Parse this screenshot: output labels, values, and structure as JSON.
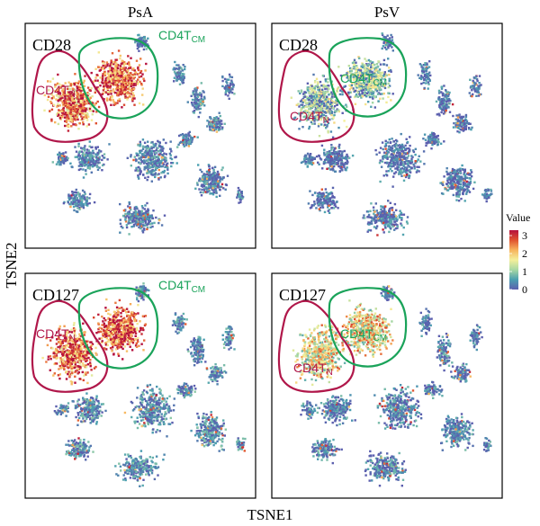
{
  "chart_data": {
    "type": "scatter",
    "xlabel": "TSNE1",
    "ylabel": "TSNE2",
    "columns": [
      "PsA",
      "PsV"
    ],
    "rows": [
      "CD28",
      "CD127"
    ],
    "legend": {
      "title": "Value",
      "ticks": [
        3,
        2,
        1,
        0
      ],
      "range": [
        0,
        3.3
      ],
      "placement": "right",
      "colors": [
        "#5b5fae",
        "#4a9fb0",
        "#a7d8a3",
        "#f4ef9a",
        "#f7b35c",
        "#e0522f",
        "#b5103e"
      ]
    },
    "gate_labels": {
      "naive": "CD4T",
      "naive_sub": "N",
      "central_memory": "CD4T",
      "central_memory_sub": "CM"
    },
    "gate_colors": {
      "naive": "#b0174a",
      "central_memory": "#1aa35a"
    },
    "panels": [
      {
        "column": "PsA",
        "marker": "CD28",
        "naive_level": 2.3,
        "cm_level": 2.6,
        "other_level": 0.2
      },
      {
        "column": "PsV",
        "marker": "CD28",
        "naive_level": 0.7,
        "cm_level": 0.8,
        "other_level": 0.1
      },
      {
        "column": "PsA",
        "marker": "CD127",
        "naive_level": 2.5,
        "cm_level": 2.6,
        "other_level": 0.3
      },
      {
        "column": "PsV",
        "marker": "CD127",
        "naive_level": 1.6,
        "cm_level": 1.7,
        "other_level": 0.2
      }
    ]
  }
}
